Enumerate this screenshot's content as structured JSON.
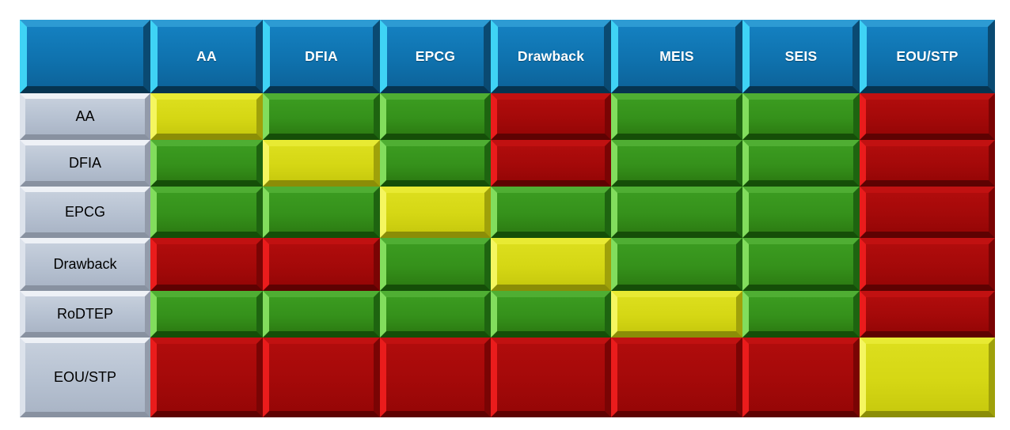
{
  "matrix": {
    "columns": [
      "AA",
      "DFIA",
      "EPCG",
      "Drawback",
      "MEIS",
      "SEIS",
      "EOU/STP"
    ],
    "rows": [
      {
        "label": "AA",
        "cells": [
          "yellow",
          "green",
          "green",
          "red",
          "green",
          "green",
          "red"
        ]
      },
      {
        "label": "DFIA",
        "cells": [
          "green",
          "yellow",
          "green",
          "red",
          "green",
          "green",
          "red"
        ]
      },
      {
        "label": "EPCG",
        "cells": [
          "green",
          "green",
          "yellow",
          "green",
          "green",
          "green",
          "red"
        ]
      },
      {
        "label": "Drawback",
        "cells": [
          "red",
          "red",
          "green",
          "yellow",
          "green",
          "green",
          "red"
        ]
      },
      {
        "label": "RoDTEP",
        "cells": [
          "green",
          "green",
          "green",
          "green",
          "yellow",
          "green",
          "red"
        ]
      },
      {
        "label": "EOU/STP",
        "cells": [
          "red",
          "red",
          "red",
          "red",
          "red",
          "red",
          "yellow"
        ]
      }
    ],
    "colors": {
      "green": "#35911b",
      "red": "#a40909",
      "yellow": "#d5d714",
      "header_blue": "#0f72ae",
      "header_highlight_cyan": "#3fd3f5",
      "label_gray": "#b6c1d1"
    }
  }
}
